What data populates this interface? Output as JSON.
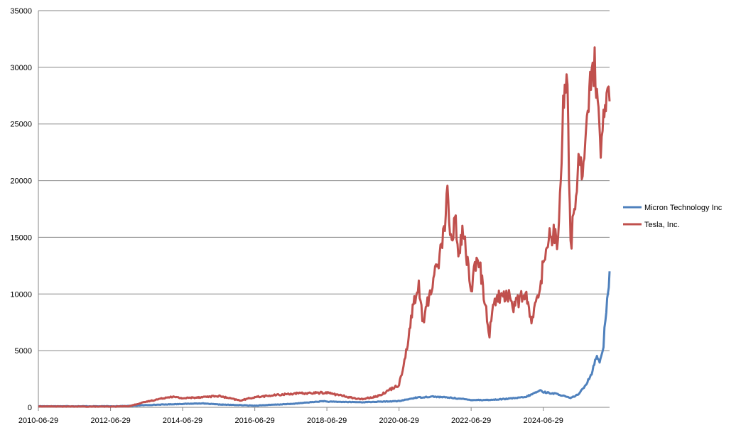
{
  "chart_data": {
    "type": "line",
    "title": "",
    "xlabel": "",
    "ylabel": "",
    "ylim": [
      0,
      35000
    ],
    "y_ticks": [
      0,
      5000,
      10000,
      15000,
      20000,
      25000,
      30000,
      35000
    ],
    "x_tick_labels": [
      "2010-06-29",
      "2012-06-29",
      "2014-06-29",
      "2016-06-29",
      "2018-06-29",
      "2020-06-29",
      "2022-06-29",
      "2024-06-29"
    ],
    "x_range": [
      "2010-06-29",
      "2026-05-01"
    ],
    "grid": "horizontal",
    "legend_position": "right",
    "series": [
      {
        "name": "Micron Technology Inc",
        "color": "#4F81BD",
        "points": [
          [
            "2010-06-29",
            100
          ],
          [
            "2012-06-29",
            90
          ],
          [
            "2013-01-01",
            120
          ],
          [
            "2013-06-29",
            200
          ],
          [
            "2014-06-29",
            300
          ],
          [
            "2015-01-01",
            350
          ],
          [
            "2015-06-29",
            250
          ],
          [
            "2016-06-29",
            150
          ],
          [
            "2017-06-29",
            300
          ],
          [
            "2018-06-01",
            550
          ],
          [
            "2018-06-29",
            500
          ],
          [
            "2019-06-29",
            450
          ],
          [
            "2020-06-29",
            550
          ],
          [
            "2020-12-15",
            850
          ],
          [
            "2021-06-01",
            950
          ],
          [
            "2021-12-01",
            850
          ],
          [
            "2022-06-29",
            650
          ],
          [
            "2023-01-01",
            650
          ],
          [
            "2023-06-29",
            750
          ],
          [
            "2024-01-01",
            900
          ],
          [
            "2024-06-01",
            1500
          ],
          [
            "2024-06-29",
            1350
          ],
          [
            "2024-12-01",
            1150
          ],
          [
            "2025-04-01",
            800
          ],
          [
            "2025-06-29",
            1200
          ],
          [
            "2025-09-01",
            2000
          ],
          [
            "2025-11-01",
            3000
          ],
          [
            "2025-12-15",
            4500
          ],
          [
            "2026-01-20",
            4000
          ],
          [
            "2026-03-01",
            5500
          ],
          [
            "2026-03-20",
            8000
          ],
          [
            "2026-04-15",
            10000
          ],
          [
            "2026-05-01",
            12000
          ]
        ]
      },
      {
        "name": "Tesla, Inc.",
        "color": "#C0504D",
        "points": [
          [
            "2010-06-29",
            80
          ],
          [
            "2012-06-29",
            60
          ],
          [
            "2013-01-01",
            100
          ],
          [
            "2013-06-29",
            500
          ],
          [
            "2014-03-01",
            950
          ],
          [
            "2014-06-29",
            800
          ],
          [
            "2015-06-29",
            1000
          ],
          [
            "2016-02-01",
            600
          ],
          [
            "2016-06-29",
            900
          ],
          [
            "2017-06-29",
            1200
          ],
          [
            "2018-06-29",
            1300
          ],
          [
            "2019-06-01",
            700
          ],
          [
            "2019-12-01",
            1000
          ],
          [
            "2020-06-29",
            2000
          ],
          [
            "2020-09-01",
            4500
          ],
          [
            "2020-12-01",
            9500
          ],
          [
            "2021-01-15",
            10500
          ],
          [
            "2021-03-01",
            7500
          ],
          [
            "2021-06-29",
            12000
          ],
          [
            "2021-09-01",
            14000
          ],
          [
            "2021-11-01",
            18500
          ],
          [
            "2021-12-15",
            14000
          ],
          [
            "2022-01-15",
            17500
          ],
          [
            "2022-03-01",
            13000
          ],
          [
            "2022-04-01",
            16000
          ],
          [
            "2022-06-29",
            10500
          ],
          [
            "2022-08-15",
            12500
          ],
          [
            "2022-09-15",
            13000
          ],
          [
            "2023-01-01",
            6500
          ],
          [
            "2023-02-15",
            9500
          ],
          [
            "2023-06-29",
            10000
          ],
          [
            "2023-09-01",
            9000
          ],
          [
            "2024-01-01",
            10000
          ],
          [
            "2024-03-01",
            7500
          ],
          [
            "2024-04-15",
            9000
          ],
          [
            "2024-06-29",
            12500
          ],
          [
            "2024-09-01",
            15500
          ],
          [
            "2024-11-15",
            15000
          ],
          [
            "2024-12-15",
            18000
          ],
          [
            "2025-02-01",
            30000
          ],
          [
            "2025-03-01",
            27000
          ],
          [
            "2025-04-01",
            14000
          ],
          [
            "2025-05-01",
            17000
          ],
          [
            "2025-06-29",
            22000
          ],
          [
            "2025-08-01",
            21000
          ],
          [
            "2025-10-01",
            27000
          ],
          [
            "2025-11-01",
            28500
          ],
          [
            "2025-12-01",
            30500
          ],
          [
            "2026-01-01",
            26000
          ],
          [
            "2026-02-01",
            22000
          ],
          [
            "2026-03-01",
            25000
          ],
          [
            "2026-04-01",
            27500
          ],
          [
            "2026-05-01",
            27000
          ]
        ]
      }
    ]
  }
}
